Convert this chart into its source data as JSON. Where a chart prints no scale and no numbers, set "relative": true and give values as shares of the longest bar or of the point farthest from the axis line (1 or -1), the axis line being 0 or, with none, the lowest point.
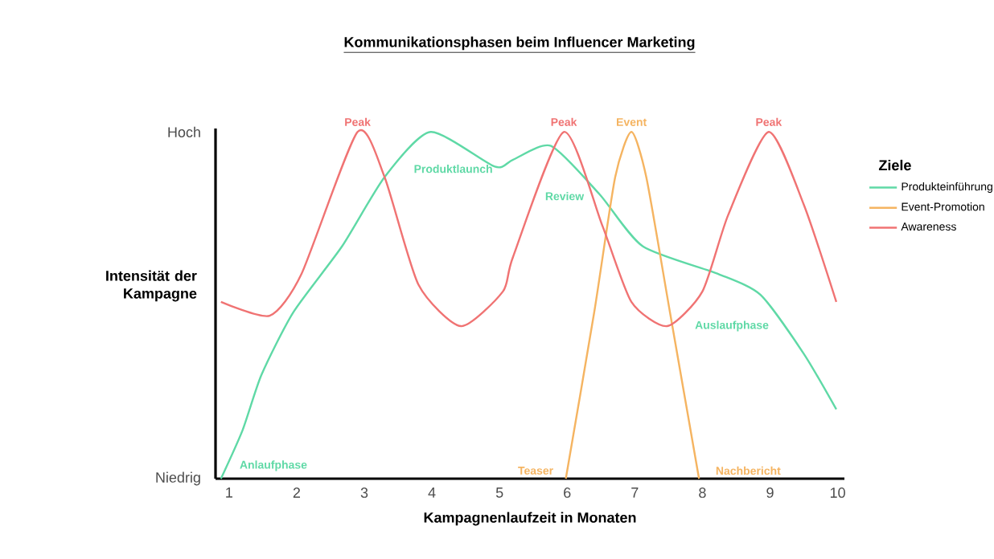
{
  "chart_data": {
    "type": "line",
    "title": "Kommunikationsphasen beim Influencer Marketing",
    "xlabel": "Kampagnenlaufzeit in Monaten",
    "ylabel": "Intensität der Kampagne",
    "legend_title": "Ziele",
    "xlim": [
      0.8,
      10.1
    ],
    "xticks": [
      1,
      2,
      3,
      4,
      5,
      6,
      7,
      8,
      9,
      10
    ],
    "relative": true,
    "grid": false,
    "legend": "right",
    "marker": "none",
    "line_style": "solid",
    "series": [
      {
        "name": "Produkteinführung",
        "color": "#5fd9a6",
        "x": [
          0.88,
          1.2,
          1.48,
          1.95,
          2.67,
          3.3,
          3.98,
          4.93,
          5.2,
          5.76,
          6.48,
          7.12,
          8.24,
          8.86,
          9.5,
          9.98
        ],
        "values": [
          0,
          0.14,
          0.3,
          0.48,
          0.67,
          0.87,
          1.0,
          0.9,
          0.92,
          0.96,
          0.82,
          0.67,
          0.59,
          0.53,
          0.36,
          0.2
        ]
      },
      {
        "name": "Event-Promotion",
        "color": "#f5b461",
        "x": [
          5.98,
          6.4,
          6.71,
          6.95,
          7.17,
          7.52,
          7.95
        ],
        "values": [
          0,
          0.48,
          0.87,
          1.0,
          0.87,
          0.48,
          0
        ]
      },
      {
        "name": "Awareness",
        "color": "#f07373",
        "x": [
          0.88,
          1.6,
          2.07,
          2.9,
          3.3,
          3.8,
          4.43,
          5.05,
          5.2,
          5.95,
          6.52,
          6.95,
          7.48,
          8.0,
          8.38,
          8.98,
          9.5,
          9.98
        ],
        "values": [
          0.51,
          0.47,
          0.59,
          1.0,
          0.87,
          0.56,
          0.44,
          0.54,
          0.64,
          1.0,
          0.73,
          0.51,
          0.44,
          0.54,
          0.76,
          1.0,
          0.79,
          0.51
        ]
      }
    ],
    "annotations": [
      {
        "text": "Peak",
        "x": 2.9,
        "y": 1.0
      },
      {
        "text": "Peak",
        "x": 5.95,
        "y": 1.0
      },
      {
        "text": "Event",
        "x": 6.95,
        "y": 1.0
      },
      {
        "text": "Peak",
        "x": 8.98,
        "y": 1.0
      },
      "Produktlaunch",
      "Review",
      "Auslaufphase",
      "Anlaufphase",
      "Teaser",
      "Nachbericht",
      "Hoch",
      "Niedrig"
    ]
  }
}
